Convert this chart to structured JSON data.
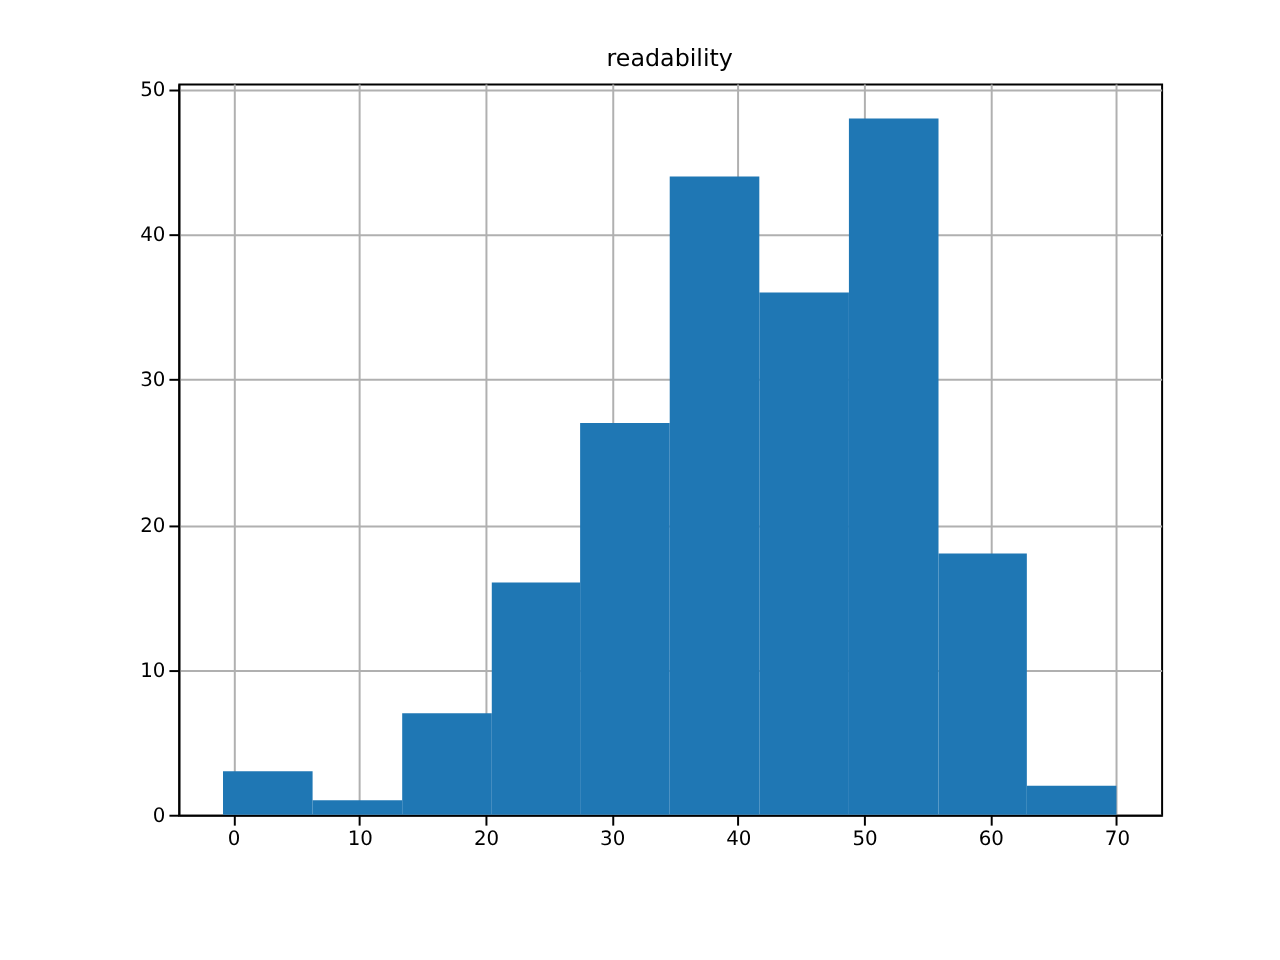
{
  "chart_data": {
    "type": "histogram",
    "title": "readability",
    "bins": [
      -0.8,
      6.3,
      13.4,
      20.5,
      27.5,
      34.6,
      41.7,
      48.8,
      55.9,
      62.9,
      70.0
    ],
    "values": [
      3,
      1,
      7,
      16,
      27,
      44,
      36,
      48,
      18,
      2
    ],
    "color": "#1f77b4",
    "xlim": [
      -4.34,
      73.54
    ],
    "xticks": [
      0,
      10,
      20,
      30,
      40,
      50,
      60,
      70
    ],
    "ylim": [
      0,
      50.4
    ],
    "yticks": [
      0,
      10,
      20,
      30,
      40,
      50
    ],
    "grid": true
  }
}
